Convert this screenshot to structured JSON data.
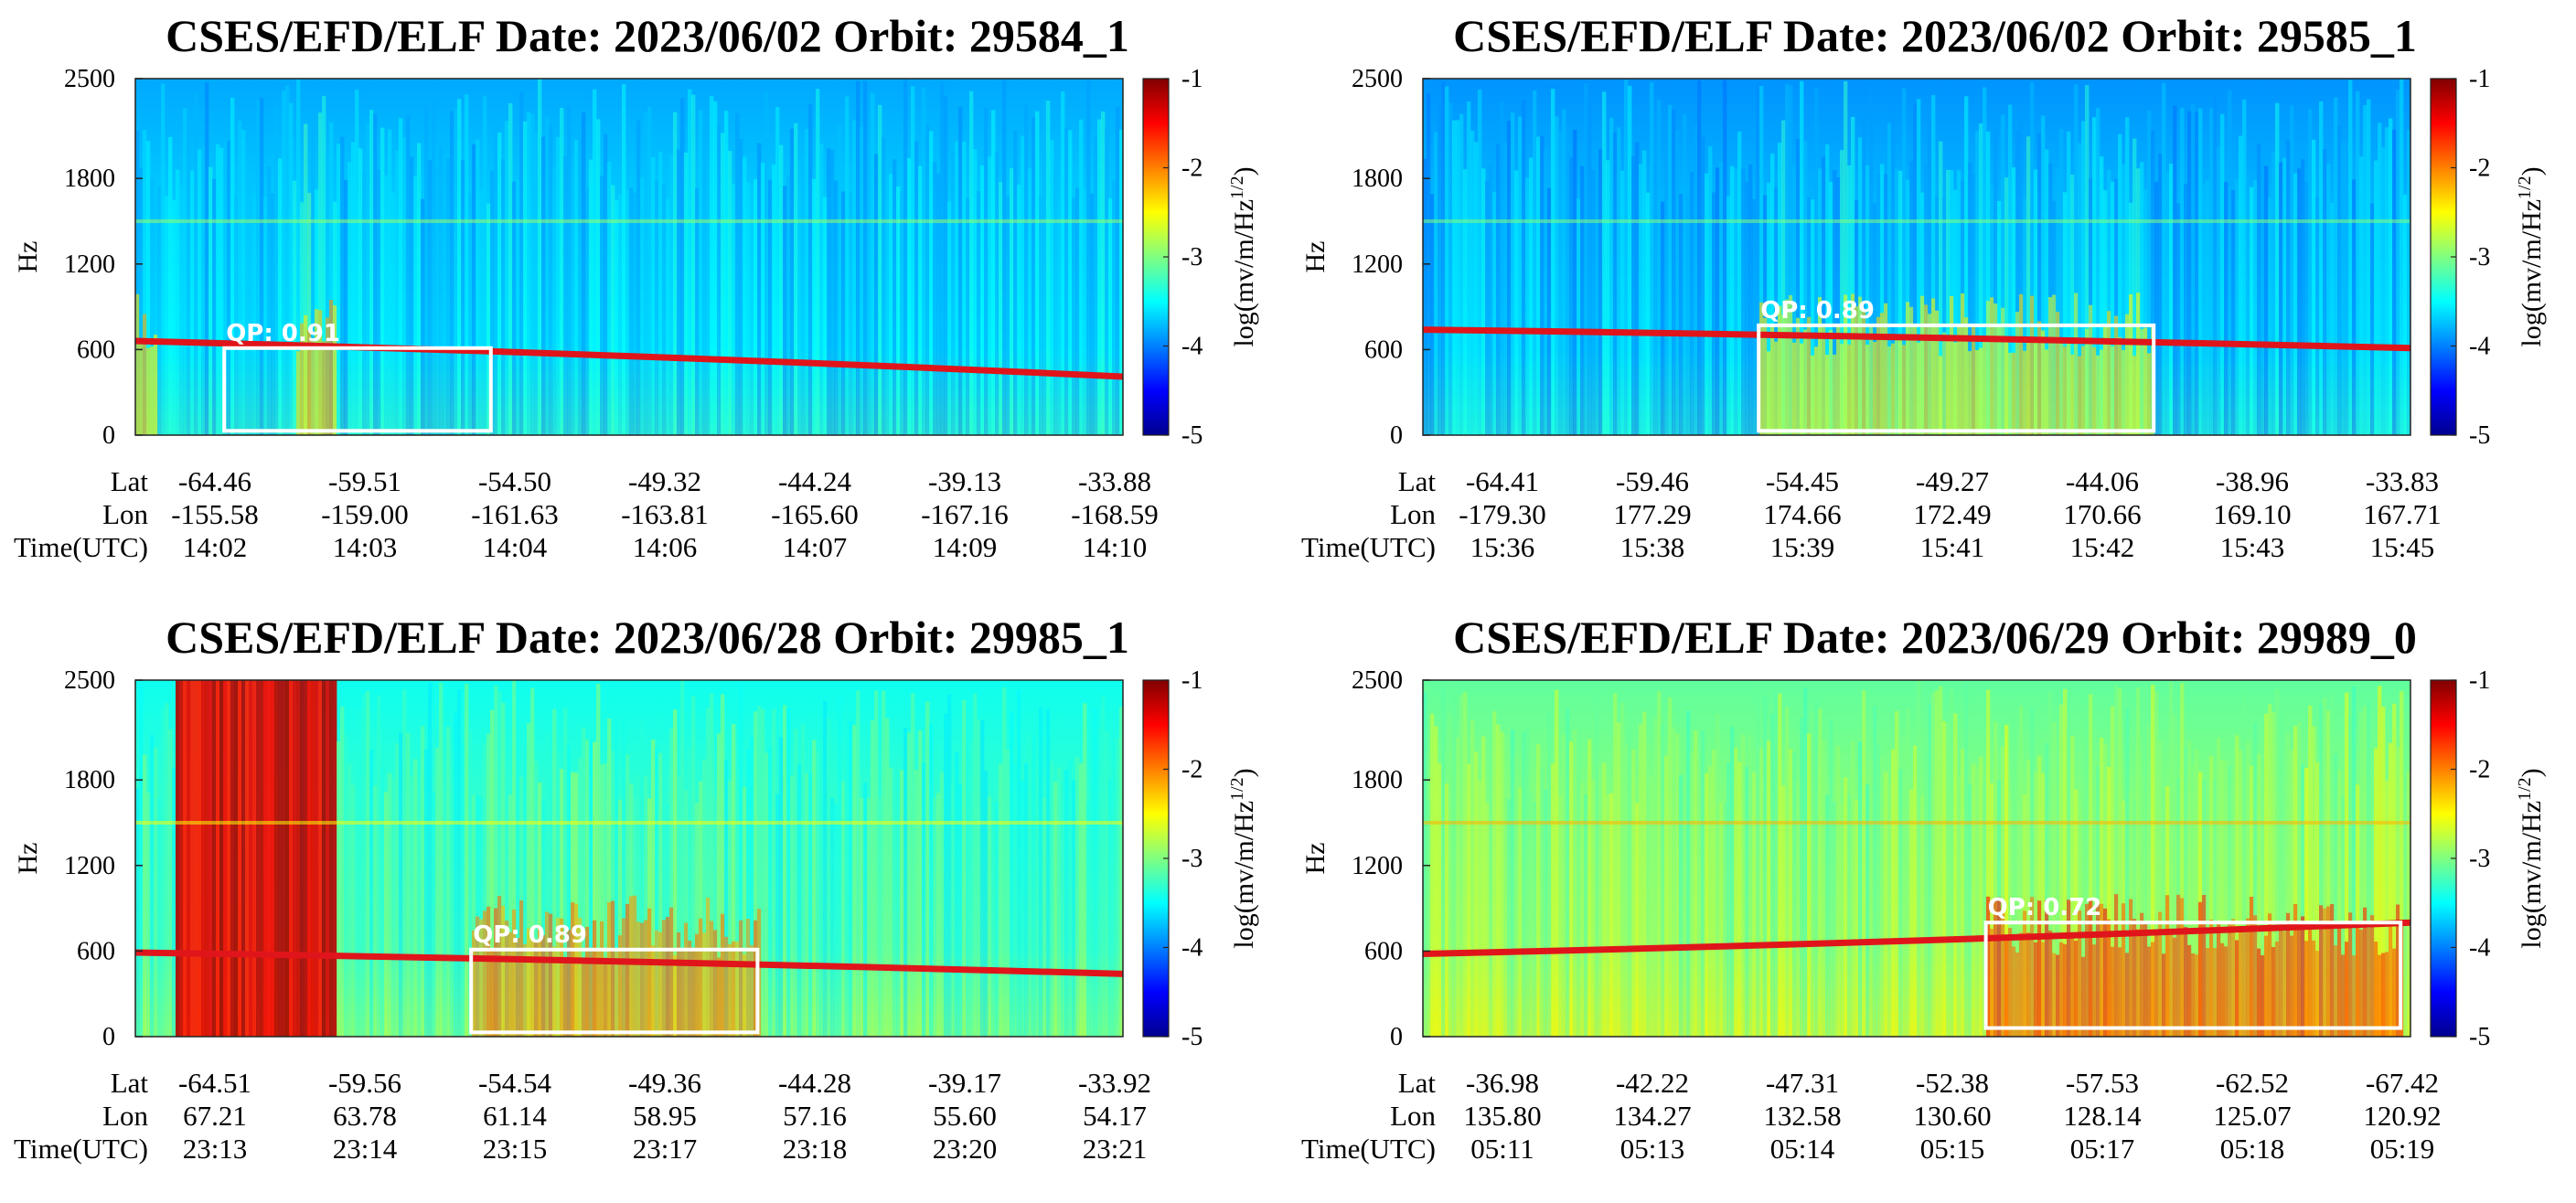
{
  "colors": {
    "jet_stops": [
      "#00008f",
      "#0000ff",
      "#0080ff",
      "#00ffff",
      "#80ff80",
      "#ffff00",
      "#ff8000",
      "#ff0000",
      "#800000"
    ],
    "trace": "#e0151b",
    "box": "#ffffff"
  },
  "chart_data": [
    {
      "type": "heatmap",
      "title": "CSES/EFD/ELF  Date: 2023/06/02  Orbit: 29584_1",
      "ylabel": "Hz",
      "yticks": [
        "0",
        "600",
        "1200",
        "1800",
        "2500"
      ],
      "ylim": [
        0,
        2500
      ],
      "colorbar": {
        "label": "log(mv/m/Hz1/2)",
        "label_base": "log(mv/m/Hz",
        "label_sup": "1/2",
        "label_close": ")",
        "ticks": [
          "-1",
          "-2",
          "-3",
          "-4",
          "-5"
        ],
        "range": [
          -5,
          -1
        ]
      },
      "annotation": {
        "text": "QP:  0.91",
        "x_range": [
          0.09,
          0.36
        ],
        "y_range": [
          30,
          610
        ]
      },
      "trace": {
        "start_hz": 660,
        "end_hz": 410
      },
      "activity": [
        [
          0.16,
          0.2,
          1.5
        ],
        [
          0.0,
          0.02,
          1.2
        ]
      ],
      "base_level": 0.32,
      "row_labels": [
        "Lat",
        "Lon",
        "Time(UTC)"
      ],
      "rows": [
        [
          "-64.46",
          "-59.51",
          "-54.50",
          "-49.32",
          "-44.24",
          "-39.13",
          "-33.88"
        ],
        [
          "-155.58",
          "-159.00",
          "-161.63",
          "-163.81",
          "-165.60",
          "-167.16",
          "-168.59"
        ],
        [
          "14:02",
          "14:03",
          "14:04",
          "14:06",
          "14:07",
          "14:09",
          "14:10"
        ]
      ]
    },
    {
      "type": "heatmap",
      "title": "CSES/EFD/ELF  Date: 2023/06/02  Orbit: 29585_1",
      "ylabel": "Hz",
      "yticks": [
        "0",
        "600",
        "1200",
        "1800",
        "2500"
      ],
      "ylim": [
        0,
        2500
      ],
      "colorbar": {
        "label": "log(mv/m/Hz1/2)",
        "label_base": "log(mv/m/Hz",
        "label_sup": "1/2",
        "label_close": ")",
        "ticks": [
          "-1",
          "-2",
          "-3",
          "-4",
          "-5"
        ],
        "range": [
          -5,
          -1
        ]
      },
      "annotation": {
        "text": "QP:  0.89",
        "x_range": [
          0.34,
          0.74
        ],
        "y_range": [
          30,
          770
        ]
      },
      "trace": {
        "start_hz": 740,
        "end_hz": 610
      },
      "activity": [
        [
          0.34,
          0.74,
          1.1
        ]
      ],
      "base_level": 0.3,
      "row_labels": [
        "Lat",
        "Lon",
        "Time(UTC)"
      ],
      "rows": [
        [
          "-64.41",
          "-59.46",
          "-54.45",
          "-49.27",
          "-44.06",
          "-38.96",
          "-33.83"
        ],
        [
          "-179.30",
          "177.29",
          "174.66",
          "172.49",
          "170.66",
          "169.10",
          "167.71"
        ],
        [
          "15:36",
          "15:38",
          "15:39",
          "15:41",
          "15:42",
          "15:43",
          "15:45"
        ]
      ]
    },
    {
      "type": "heatmap",
      "title": "CSES/EFD/ELF  Date: 2023/06/28  Orbit: 29985_1",
      "ylabel": "Hz",
      "yticks": [
        "0",
        "600",
        "1200",
        "1800",
        "2500"
      ],
      "ylim": [
        0,
        2500
      ],
      "colorbar": {
        "label": "log(mv/m/Hz1/2)",
        "label_base": "log(mv/m/Hz",
        "label_sup": "1/2",
        "label_close": ")",
        "ticks": [
          "-1",
          "-2",
          "-3",
          "-4",
          "-5"
        ],
        "range": [
          -5,
          -1
        ]
      },
      "annotation": {
        "text": "QP:  0.89",
        "x_range": [
          0.34,
          0.63
        ],
        "y_range": [
          30,
          610
        ]
      },
      "trace": {
        "start_hz": 590,
        "end_hz": 440
      },
      "activity": [
        [
          0.04,
          0.2,
          2.4
        ],
        [
          0.34,
          0.63,
          1.1
        ]
      ],
      "base_level": 0.42,
      "row_labels": [
        "Lat",
        "Lon",
        "Time(UTC)"
      ],
      "rows": [
        [
          "-64.51",
          "-59.56",
          "-54.54",
          "-49.36",
          "-44.28",
          "-39.17",
          "-33.92"
        ],
        [
          "67.21",
          "63.78",
          "61.14",
          "58.95",
          "57.16",
          "55.60",
          "54.17"
        ],
        [
          "23:13",
          "23:14",
          "23:15",
          "23:17",
          "23:18",
          "23:20",
          "23:21"
        ]
      ]
    },
    {
      "type": "heatmap",
      "title": "CSES/EFD/ELF  Date: 2023/06/29  Orbit: 29989_0",
      "ylabel": "Hz",
      "yticks": [
        "0",
        "600",
        "1200",
        "1800",
        "2500"
      ],
      "ylim": [
        0,
        2500
      ],
      "colorbar": {
        "label": "log(mv/m/Hz1/2)",
        "label_base": "log(mv/m/Hz",
        "label_sup": "1/2",
        "label_close": ")",
        "ticks": [
          "-1",
          "-2",
          "-3",
          "-4",
          "-5"
        ],
        "range": [
          -5,
          -1
        ]
      },
      "annotation": {
        "text": "QP:  0.72",
        "x_range": [
          0.57,
          0.99
        ],
        "y_range": [
          60,
          800
        ]
      },
      "trace": {
        "start_hz": 580,
        "end_hz": 800
      },
      "activity": [
        [
          0.57,
          0.99,
          1.0
        ]
      ],
      "base_level": 0.5,
      "row_labels": [
        "Lat",
        "Lon",
        "Time(UTC)"
      ],
      "rows": [
        [
          "-36.98",
          "-42.22",
          "-47.31",
          "-52.38",
          "-57.53",
          "-62.52",
          "-67.42"
        ],
        [
          "135.80",
          "134.27",
          "132.58",
          "130.60",
          "128.14",
          "125.07",
          "120.92"
        ],
        [
          "05:11",
          "05:13",
          "05:14",
          "05:15",
          "05:17",
          "05:18",
          "05:19"
        ]
      ]
    }
  ]
}
